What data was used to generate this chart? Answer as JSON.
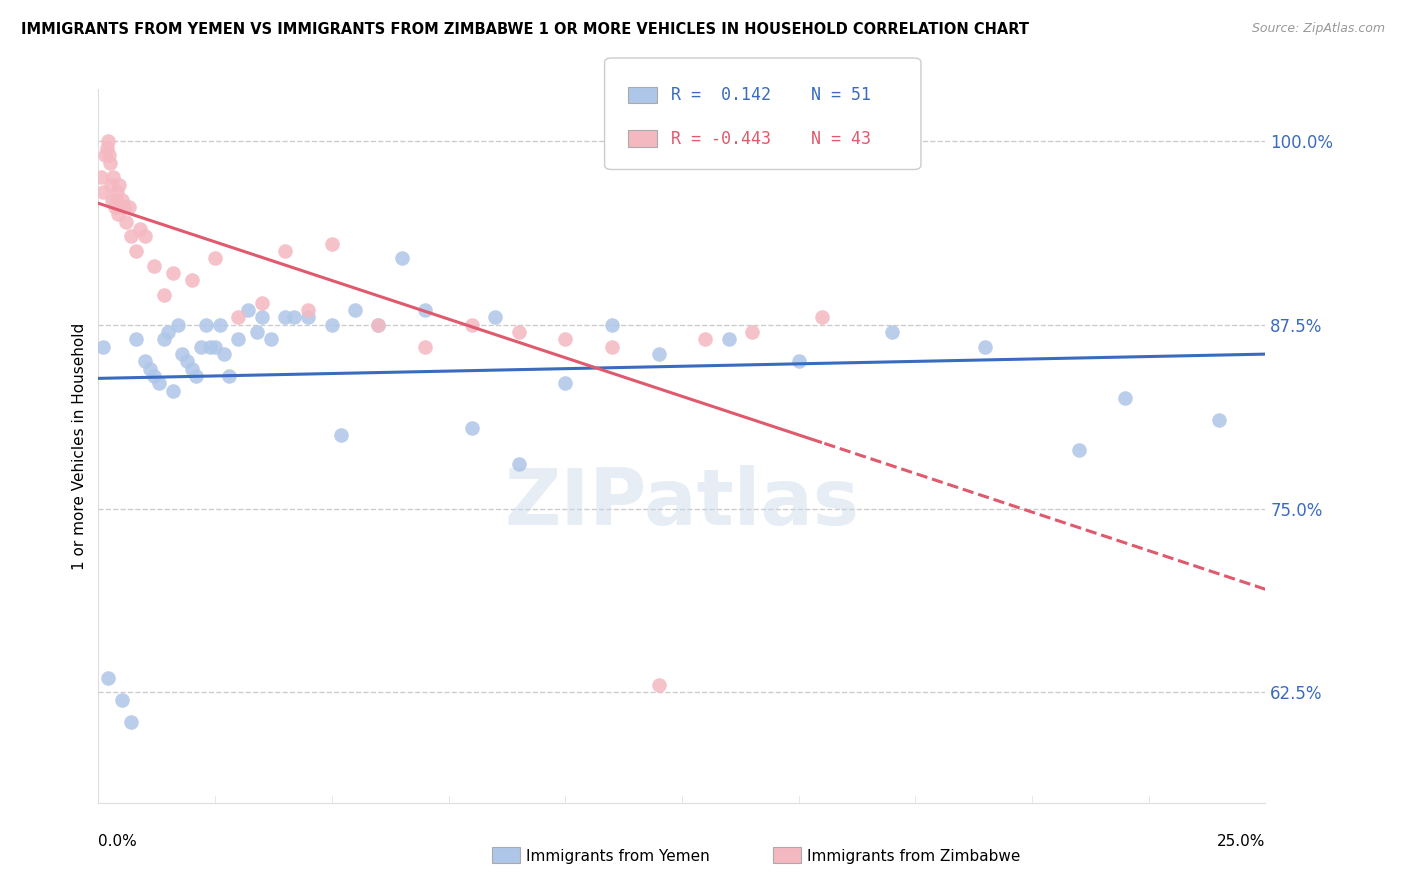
{
  "title": "IMMIGRANTS FROM YEMEN VS IMMIGRANTS FROM ZIMBABWE 1 OR MORE VEHICLES IN HOUSEHOLD CORRELATION CHART",
  "source": "Source: ZipAtlas.com",
  "ylabel": "1 or more Vehicles in Household",
  "yticks": [
    62.5,
    75.0,
    87.5,
    100.0
  ],
  "xlim": [
    0.0,
    25.0
  ],
  "ylim": [
    55.0,
    103.5
  ],
  "color_yemen": "#aec6e8",
  "color_zimbabwe": "#f4b8c1",
  "line_color_yemen": "#3a6bbf",
  "line_color_zimbabwe": "#e05a6e",
  "background_color": "#ffffff",
  "grid_color": "#cccccc",
  "yemen_x": [
    0.1,
    0.2,
    0.5,
    0.7,
    0.8,
    1.0,
    1.1,
    1.2,
    1.3,
    1.4,
    1.5,
    1.6,
    1.7,
    1.8,
    1.9,
    2.0,
    2.1,
    2.2,
    2.3,
    2.4,
    2.5,
    2.6,
    2.7,
    2.8,
    3.0,
    3.2,
    3.4,
    3.5,
    3.7,
    4.0,
    4.2,
    4.5,
    5.0,
    5.2,
    5.5,
    6.0,
    6.5,
    7.0,
    8.0,
    8.5,
    9.0,
    10.0,
    11.0,
    12.0,
    13.5,
    15.0,
    17.0,
    19.0,
    21.0,
    22.0,
    24.0
  ],
  "yemen_y": [
    86.0,
    63.5,
    62.0,
    60.5,
    86.5,
    85.0,
    84.5,
    84.0,
    83.5,
    86.5,
    87.0,
    83.0,
    87.5,
    85.5,
    85.0,
    84.5,
    84.0,
    86.0,
    87.5,
    86.0,
    86.0,
    87.5,
    85.5,
    84.0,
    86.5,
    88.5,
    87.0,
    88.0,
    86.5,
    88.0,
    88.0,
    88.0,
    87.5,
    80.0,
    88.5,
    87.5,
    92.0,
    88.5,
    80.5,
    88.0,
    78.0,
    83.5,
    87.5,
    85.5,
    86.5,
    85.0,
    87.0,
    86.0,
    79.0,
    82.5,
    81.0
  ],
  "zimbabwe_x": [
    0.05,
    0.1,
    0.15,
    0.18,
    0.2,
    0.22,
    0.25,
    0.28,
    0.3,
    0.32,
    0.35,
    0.38,
    0.4,
    0.42,
    0.45,
    0.5,
    0.55,
    0.6,
    0.65,
    0.7,
    0.8,
    0.9,
    1.0,
    1.2,
    1.4,
    1.6,
    2.0,
    2.5,
    3.0,
    3.5,
    4.0,
    4.5,
    5.0,
    6.0,
    7.0,
    8.0,
    9.0,
    10.0,
    11.0,
    12.0,
    13.0,
    14.0,
    15.5
  ],
  "zimbabwe_y": [
    97.5,
    96.5,
    99.0,
    99.5,
    100.0,
    99.0,
    98.5,
    97.0,
    96.0,
    97.5,
    95.5,
    96.0,
    96.5,
    95.0,
    97.0,
    96.0,
    95.5,
    94.5,
    95.5,
    93.5,
    92.5,
    94.0,
    93.5,
    91.5,
    89.5,
    91.0,
    90.5,
    92.0,
    88.0,
    89.0,
    92.5,
    88.5,
    93.0,
    87.5,
    86.0,
    87.5,
    87.0,
    86.5,
    86.0,
    63.0,
    86.5,
    87.0,
    88.0
  ]
}
